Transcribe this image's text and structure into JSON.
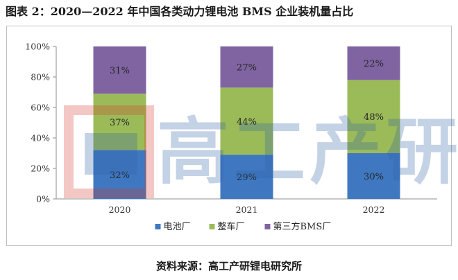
{
  "figure_title": "图表 2：2020—2022 年中国各类动力锂电池 BMS 企业装机量占比",
  "watermark_text": "高工产研",
  "source": "资料来源：高工产研锂电研究所",
  "chart_data": {
    "type": "bar",
    "stacked": true,
    "percent": true,
    "categories": [
      "2020",
      "2021",
      "2022"
    ],
    "series": [
      {
        "name": "电池厂",
        "values": [
          32,
          29,
          30
        ],
        "labels": [
          "32%",
          "29%",
          "30%"
        ],
        "color": "#3f78c1"
      },
      {
        "name": "整车厂",
        "values": [
          37,
          44,
          48
        ],
        "labels": [
          "37%",
          "44%",
          "48%"
        ],
        "color": "#9bbb59"
      },
      {
        "name": "第三方BMS厂",
        "values": [
          31,
          27,
          22
        ],
        "labels": [
          "31%",
          "27%",
          "22%"
        ],
        "color": "#8064a2"
      }
    ],
    "ylim": [
      0,
      100
    ],
    "yticks": [
      0,
      20,
      40,
      60,
      80,
      100
    ],
    "ytick_labels": [
      "0%",
      "20%",
      "40%",
      "60%",
      "80%",
      "100%"
    ],
    "grid": false,
    "legend_position": "bottom"
  }
}
